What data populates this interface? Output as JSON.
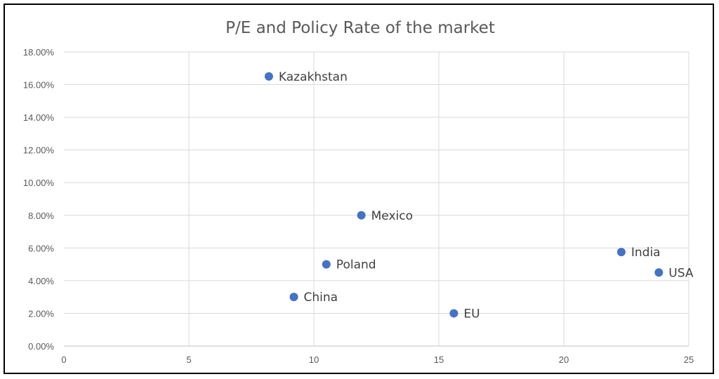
{
  "chart_data": {
    "type": "scatter",
    "title": "P/E and Policy Rate of the market",
    "xlabel": "",
    "ylabel": "",
    "xlim": [
      0,
      25
    ],
    "ylim": [
      0,
      0.18
    ],
    "x_ticks": [
      0,
      5,
      10,
      15,
      20,
      25
    ],
    "y_ticks": [
      0,
      0.02,
      0.04,
      0.06,
      0.08,
      0.1,
      0.12,
      0.14,
      0.16,
      0.18
    ],
    "x_tick_labels": [
      "0",
      "5",
      "10",
      "15",
      "20",
      "25"
    ],
    "y_tick_labels": [
      "0.00%",
      "2.00%",
      "4.00%",
      "6.00%",
      "8.00%",
      "10.00%",
      "12.00%",
      "14.00%",
      "16.00%",
      "18.00%"
    ],
    "grid": true,
    "legend": "none",
    "point_color": "#4472c4",
    "points": [
      {
        "label": "Kazakhstan",
        "x": 8.2,
        "y": 0.165
      },
      {
        "label": "Mexico",
        "x": 11.9,
        "y": 0.08
      },
      {
        "label": "Poland",
        "x": 10.5,
        "y": 0.05
      },
      {
        "label": "China",
        "x": 9.2,
        "y": 0.03
      },
      {
        "label": "EU",
        "x": 15.6,
        "y": 0.02
      },
      {
        "label": "India",
        "x": 22.3,
        "y": 0.0575
      },
      {
        "label": "USA",
        "x": 23.8,
        "y": 0.045
      }
    ]
  }
}
